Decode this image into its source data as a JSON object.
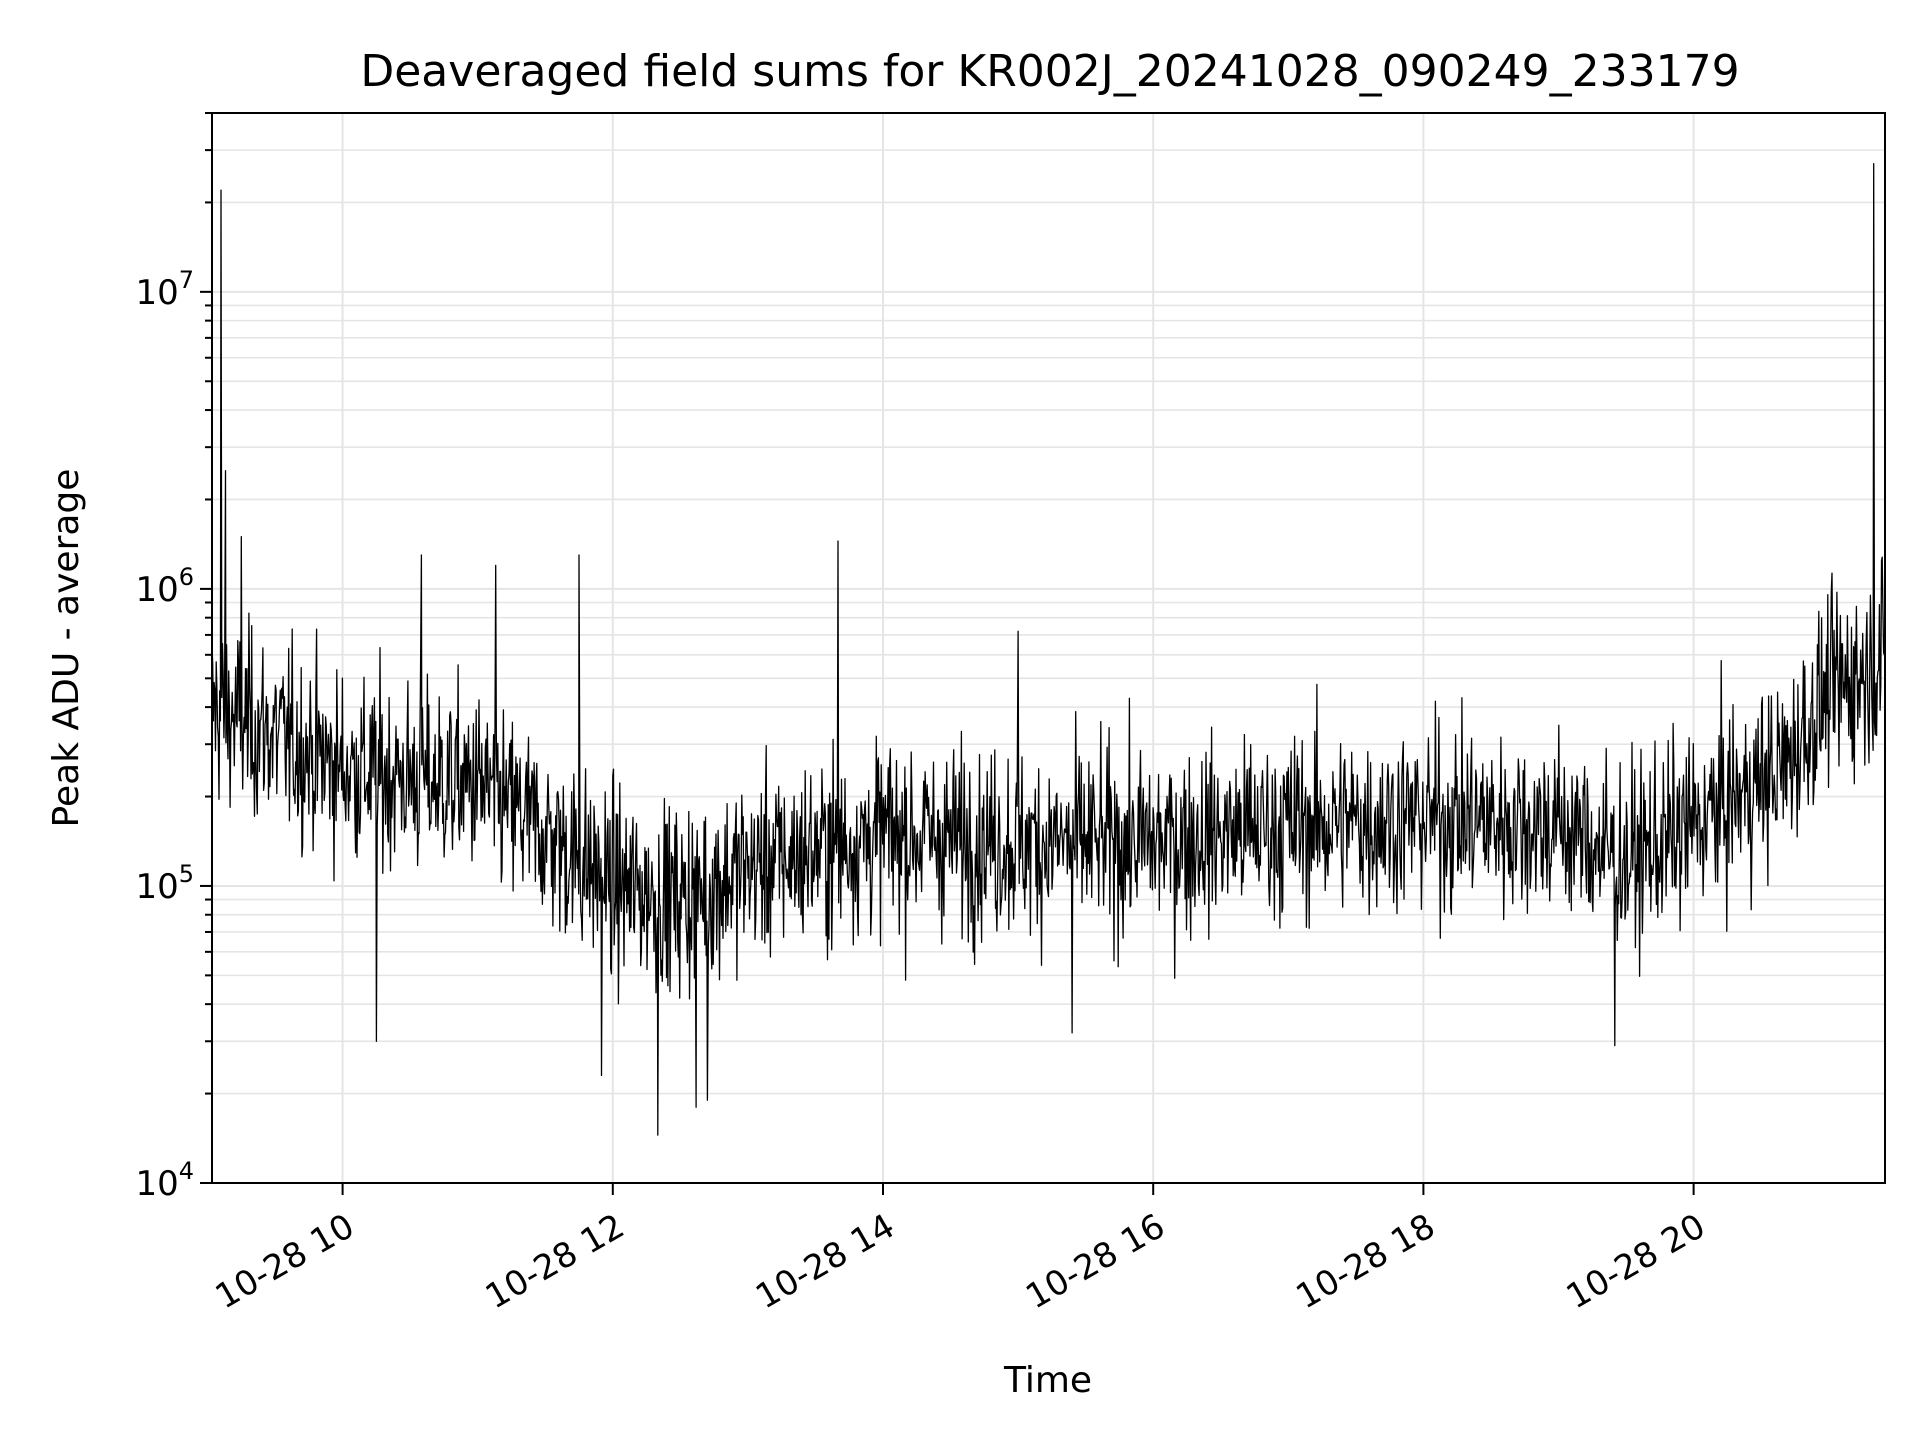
{
  "chart_data": {
    "type": "line",
    "title": "Deaveraged field sums for KR002J_20241028_090249_233179",
    "xlabel": "Time",
    "ylabel": "Peak ADU - average",
    "x_range": [
      "2024-10-28 09:02",
      "2024-10-28 21:25"
    ],
    "y_range": [
      10000,
      40000000
    ],
    "yscale": "log",
    "grid": true,
    "line_color": "#000000",
    "x_ticks": [
      {
        "value": "2024-10-28 10:00",
        "label": "10-28 10"
      },
      {
        "value": "2024-10-28 12:00",
        "label": "10-28 12"
      },
      {
        "value": "2024-10-28 14:00",
        "label": "10-28 14"
      },
      {
        "value": "2024-10-28 16:00",
        "label": "10-28 16"
      },
      {
        "value": "2024-10-28 18:00",
        "label": "10-28 18"
      },
      {
        "value": "2024-10-28 20:00",
        "label": "10-28 20"
      }
    ],
    "y_ticks": [
      {
        "value": 10000,
        "base": "10",
        "exp": "4"
      },
      {
        "value": 100000,
        "base": "10",
        "exp": "5"
      },
      {
        "value": 1000000,
        "base": "10",
        "exp": "6"
      },
      {
        "value": 10000000,
        "base": "10",
        "exp": "7"
      }
    ],
    "trend": [
      {
        "x": "2024-10-28 09:02",
        "y": 400000
      },
      {
        "x": "2024-10-28 09:30",
        "y": 320000
      },
      {
        "x": "2024-10-28 10:00",
        "y": 250000
      },
      {
        "x": "2024-10-28 10:30",
        "y": 230000
      },
      {
        "x": "2024-10-28 11:00",
        "y": 220000
      },
      {
        "x": "2024-10-28 11:30",
        "y": 150000
      },
      {
        "x": "2024-10-28 12:00",
        "y": 100000
      },
      {
        "x": "2024-10-28 12:30",
        "y": 90000
      },
      {
        "x": "2024-10-28 13:00",
        "y": 115000
      },
      {
        "x": "2024-10-28 14:00",
        "y": 150000
      },
      {
        "x": "2024-10-28 15:00",
        "y": 140000
      },
      {
        "x": "2024-10-28 16:00",
        "y": 140000
      },
      {
        "x": "2024-10-28 17:00",
        "y": 160000
      },
      {
        "x": "2024-10-28 18:00",
        "y": 170000
      },
      {
        "x": "2024-10-28 19:00",
        "y": 160000
      },
      {
        "x": "2024-10-28 19:30",
        "y": 120000
      },
      {
        "x": "2024-10-28 20:00",
        "y": 160000
      },
      {
        "x": "2024-10-28 20:40",
        "y": 250000
      },
      {
        "x": "2024-10-28 21:00",
        "y": 450000
      },
      {
        "x": "2024-10-28 21:25",
        "y": 580000
      }
    ],
    "noise_decades": 0.22,
    "spikes": [
      {
        "x": "2024-10-28 09:06",
        "y": 22000000
      },
      {
        "x": "2024-10-28 09:08",
        "y": 2500000
      },
      {
        "x": "2024-10-28 09:15",
        "y": 1500000
      },
      {
        "x": "2024-10-28 10:35",
        "y": 1300000
      },
      {
        "x": "2024-10-28 11:08",
        "y": 1200000
      },
      {
        "x": "2024-10-28 11:45",
        "y": 1300000
      },
      {
        "x": "2024-10-28 13:40",
        "y": 1450000
      },
      {
        "x": "2024-10-28 15:00",
        "y": 720000
      },
      {
        "x": "2024-10-28 21:20",
        "y": 27000000
      }
    ],
    "dips": [
      {
        "x": "2024-10-28 10:15",
        "y": 30000
      },
      {
        "x": "2024-10-28 11:55",
        "y": 23000
      },
      {
        "x": "2024-10-28 12:20",
        "y": 14500
      },
      {
        "x": "2024-10-28 12:37",
        "y": 18000
      },
      {
        "x": "2024-10-28 12:42",
        "y": 19000
      },
      {
        "x": "2024-10-28 15:24",
        "y": 32000
      },
      {
        "x": "2024-10-28 19:25",
        "y": 29000
      }
    ]
  }
}
